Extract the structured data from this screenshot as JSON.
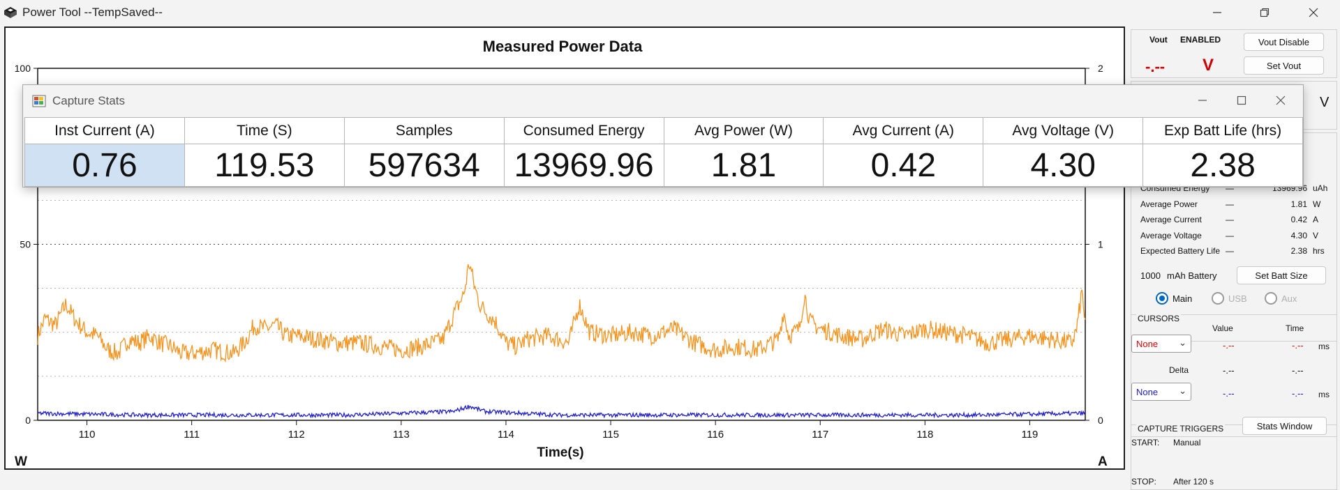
{
  "window": {
    "title": "Power Tool --TempSaved--"
  },
  "chart": {
    "title": "Measured Power Data",
    "left_unit": "W",
    "right_unit": "A",
    "x_label": "Time(s)",
    "left_ticks": [
      "100",
      "50",
      "0"
    ],
    "right_ticks": [
      "2",
      "1",
      "0"
    ],
    "x_ticks": [
      "110",
      "111",
      "112",
      "113",
      "114",
      "115",
      "116",
      "117",
      "118",
      "119"
    ]
  },
  "chart_data": {
    "type": "line",
    "title": "Measured Power Data",
    "xlabel": "Time(s)",
    "ylabel_left": "W",
    "ylabel_right": "A",
    "xlim": [
      109.53,
      119.53
    ],
    "ylim_left": [
      0,
      100
    ],
    "ylim_right": [
      0,
      2
    ],
    "series": [
      {
        "color": "#f5931e",
        "axis": "left",
        "x": [
          109.53,
          109.6,
          109.7,
          109.8,
          109.9,
          110.0,
          110.1,
          110.2,
          110.3,
          110.4,
          110.5,
          110.6,
          110.7,
          110.8,
          110.9,
          111.0,
          111.2,
          111.4,
          111.5,
          111.6,
          111.7,
          111.8,
          111.9,
          112.0,
          112.2,
          112.4,
          112.6,
          112.8,
          113.0,
          113.2,
          113.4,
          113.5,
          113.6,
          113.65,
          113.7,
          113.75,
          113.8,
          113.9,
          114.0,
          114.1,
          114.2,
          114.4,
          114.6,
          114.7,
          114.8,
          115.0,
          115.2,
          115.4,
          115.5,
          115.6,
          115.8,
          116.0,
          116.2,
          116.4,
          116.6,
          116.65,
          116.7,
          116.8,
          116.85,
          116.9,
          117.0,
          117.2,
          117.4,
          117.6,
          117.8,
          118.0,
          118.2,
          118.4,
          118.6,
          118.8,
          119.0,
          119.2,
          119.4,
          119.45,
          119.5,
          119.53
        ],
        "values": [
          24,
          29,
          27,
          33,
          28,
          25,
          24,
          20,
          19,
          23,
          22,
          24,
          22,
          21,
          19,
          19,
          20,
          19,
          22,
          27,
          26,
          27,
          24,
          24,
          23,
          22,
          22,
          21,
          20,
          21,
          23,
          30,
          36,
          45,
          38,
          33,
          31,
          28,
          22,
          21,
          23,
          24,
          22,
          33,
          25,
          24,
          25,
          24,
          25,
          26,
          22,
          20,
          21,
          20,
          23,
          31,
          24,
          26,
          36,
          28,
          26,
          24,
          23,
          26,
          24,
          26,
          25,
          24,
          22,
          23,
          24,
          23,
          22,
          26,
          37,
          27
        ]
      },
      {
        "color": "#1c1ccc",
        "axis": "right",
        "x": [
          109.53,
          110.5,
          111.5,
          112.5,
          113.5,
          113.65,
          113.8,
          114.5,
          115.5,
          116.5,
          117.5,
          118.5,
          119.53
        ],
        "values": [
          0.04,
          0.03,
          0.03,
          0.03,
          0.05,
          0.08,
          0.05,
          0.03,
          0.03,
          0.03,
          0.03,
          0.03,
          0.04
        ]
      }
    ]
  },
  "vout": {
    "label": "Vout",
    "state": "ENABLED",
    "reading": "-.--",
    "unit": "V",
    "disable_button": "Vout Disable",
    "set_button": "Set Vout"
  },
  "hidden_button_fragment": "V",
  "stats_panel": {
    "rows": [
      {
        "label": "Consumed Energy",
        "value": "13969.96",
        "unit": "uAh"
      },
      {
        "label": "Average Power",
        "value": "1.81",
        "unit": "W"
      },
      {
        "label": "Average Current",
        "value": "0.42",
        "unit": "A"
      },
      {
        "label": "Average Voltage",
        "value": "4.30",
        "unit": "V"
      },
      {
        "label": "Expected Battery Life",
        "value": "2.38",
        "unit": "hrs"
      }
    ],
    "battery_value": "1000",
    "battery_label": "mAh Battery",
    "set_batt_button": "Set Batt Size",
    "radios": [
      "Main",
      "USB",
      "Aux"
    ]
  },
  "cursors": {
    "title": "CURSORS",
    "value_header": "Value",
    "time_header": "Time",
    "select1": "None",
    "select2": "None",
    "placeholder": "-.--",
    "delta_label": "Delta",
    "time_unit": "ms"
  },
  "triggers": {
    "title": "CAPTURE TRIGGERS",
    "stats_button": "Stats Window",
    "start_label": "START:",
    "start_value": "Manual",
    "stop_label": "STOP:",
    "stop_value": "After 120 s"
  },
  "capture_stats": {
    "title": "Capture Stats",
    "headers": [
      "Inst Current (A)",
      "Time (S)",
      "Samples",
      "Consumed Energy",
      "Avg Power (W)",
      "Avg Current (A)",
      "Avg Voltage (V)",
      "Exp Batt Life (hrs)"
    ],
    "values": [
      "0.76",
      "119.53",
      "597634",
      "13969.96",
      "1.81",
      "0.42",
      "4.30",
      "2.38"
    ]
  },
  "colors": {
    "power_trace": "#f5931e",
    "current_trace": "#1c1ccc",
    "vout_reading": "#cc0000",
    "selected_cell": "#cfe1f3",
    "cursor1": "#e00000",
    "cursor2": "#1a1acc"
  }
}
